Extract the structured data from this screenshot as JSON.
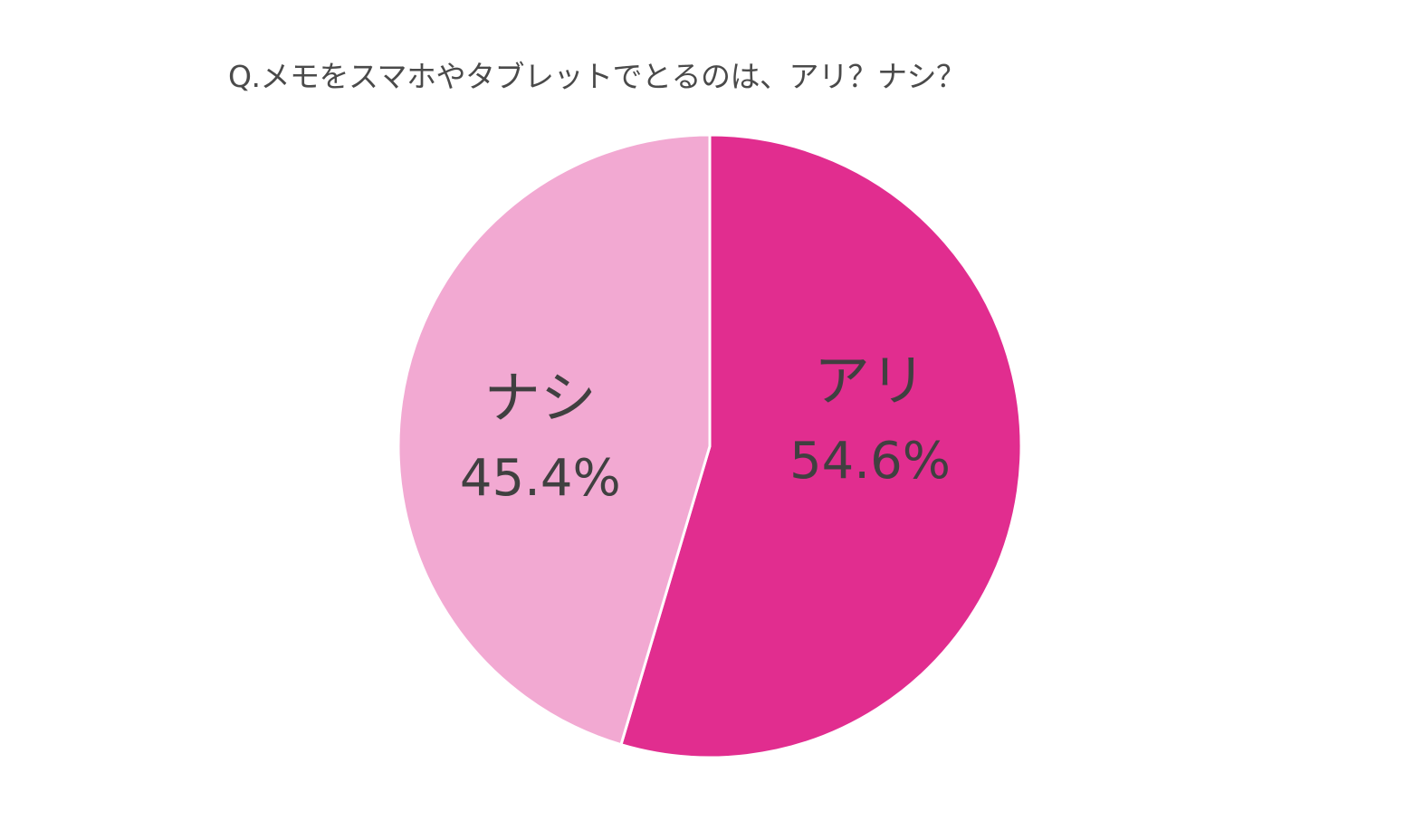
{
  "chart_data": {
    "type": "pie",
    "title": "Q.メモをスマホやタブレットでとるのは、アリ？ナシ？",
    "slices": [
      {
        "label": "アリ",
        "value": 54.6,
        "display": "54.6%",
        "color": "#e12d8f"
      },
      {
        "label": "ナシ",
        "value": 45.4,
        "display": "45.4%",
        "color": "#f2a9d2"
      }
    ],
    "start": "12 o'clock",
    "direction": "clockwise",
    "legend": "none",
    "data_labels": "inside"
  }
}
